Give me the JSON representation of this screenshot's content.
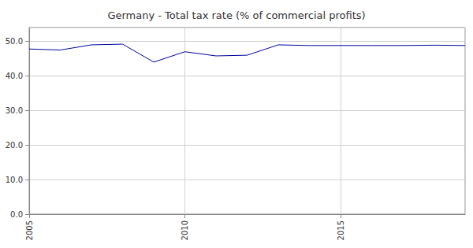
{
  "chart_data": {
    "type": "line",
    "title": "Germany - Total tax rate (% of commercial profits)",
    "x": [
      2005,
      2006,
      2007,
      2008,
      2009,
      2010,
      2011,
      2012,
      2013,
      2014,
      2015,
      2016,
      2017,
      2018,
      2019
    ],
    "values": [
      47.8,
      47.5,
      49.0,
      49.2,
      44.0,
      47.0,
      45.8,
      46.0,
      49.0,
      48.8,
      48.8,
      48.8,
      48.8,
      48.9,
      48.8
    ],
    "color": "#0000a0",
    "xlim": [
      2005,
      2019
    ],
    "xticks": [
      2005,
      2010,
      2015
    ],
    "ylim": [
      0,
      54
    ],
    "yticks": [
      {
        "value": 0,
        "label": "0.0"
      },
      {
        "value": 10,
        "label": "10.0"
      },
      {
        "value": 20,
        "label": "20.0"
      },
      {
        "value": 30,
        "label": "30.0"
      },
      {
        "value": 40,
        "label": "40.0"
      },
      {
        "value": 50,
        "label": "50.0"
      }
    ],
    "grid": true
  }
}
